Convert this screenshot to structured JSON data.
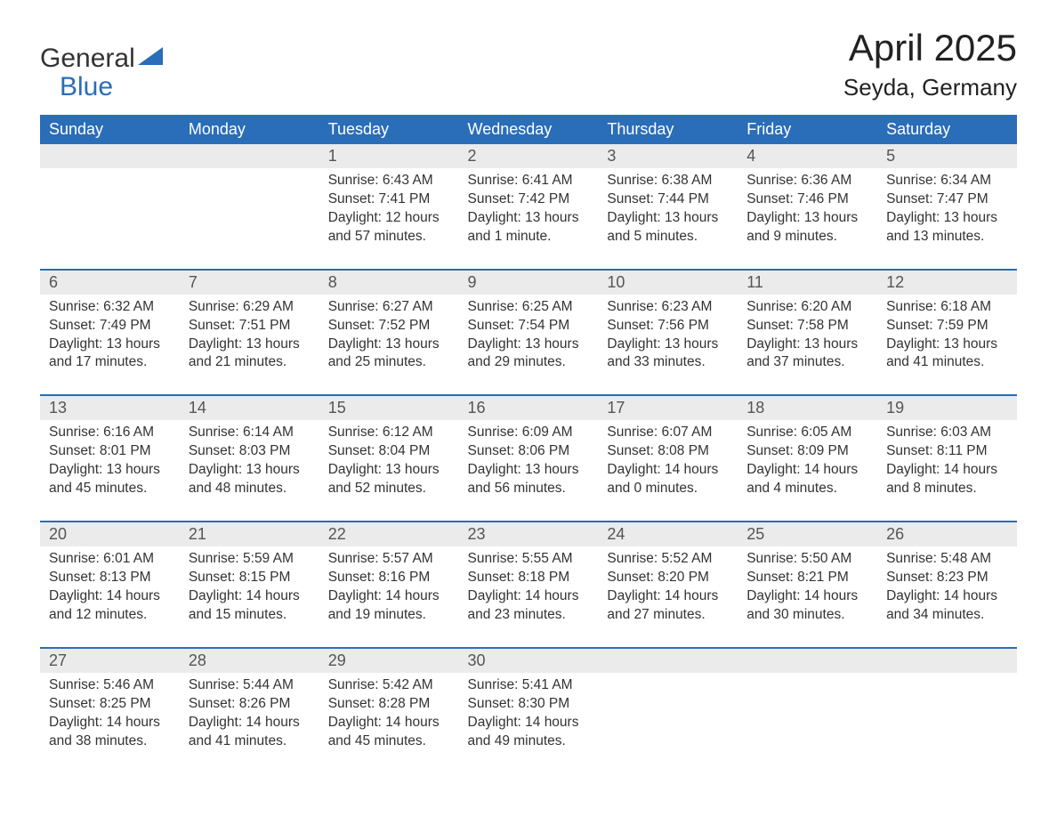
{
  "logo": {
    "line1": "General",
    "line2": "Blue",
    "triangle_color": "#2a6db8"
  },
  "title": "April 2025",
  "location": "Seyda, Germany",
  "header_bg": "#2a6db8",
  "border_color": "#2a6db8",
  "daynum_bg": "#ebebeb",
  "text_color": "#333333",
  "days_of_week": [
    "Sunday",
    "Monday",
    "Tuesday",
    "Wednesday",
    "Thursday",
    "Friday",
    "Saturday"
  ],
  "weeks": [
    [
      {
        "day": "",
        "sunrise": "",
        "sunset": "",
        "daylight": ""
      },
      {
        "day": "",
        "sunrise": "",
        "sunset": "",
        "daylight": ""
      },
      {
        "day": "1",
        "sunrise": "Sunrise: 6:43 AM",
        "sunset": "Sunset: 7:41 PM",
        "daylight": "Daylight: 12 hours and 57 minutes."
      },
      {
        "day": "2",
        "sunrise": "Sunrise: 6:41 AM",
        "sunset": "Sunset: 7:42 PM",
        "daylight": "Daylight: 13 hours and 1 minute."
      },
      {
        "day": "3",
        "sunrise": "Sunrise: 6:38 AM",
        "sunset": "Sunset: 7:44 PM",
        "daylight": "Daylight: 13 hours and 5 minutes."
      },
      {
        "day": "4",
        "sunrise": "Sunrise: 6:36 AM",
        "sunset": "Sunset: 7:46 PM",
        "daylight": "Daylight: 13 hours and 9 minutes."
      },
      {
        "day": "5",
        "sunrise": "Sunrise: 6:34 AM",
        "sunset": "Sunset: 7:47 PM",
        "daylight": "Daylight: 13 hours and 13 minutes."
      }
    ],
    [
      {
        "day": "6",
        "sunrise": "Sunrise: 6:32 AM",
        "sunset": "Sunset: 7:49 PM",
        "daylight": "Daylight: 13 hours and 17 minutes."
      },
      {
        "day": "7",
        "sunrise": "Sunrise: 6:29 AM",
        "sunset": "Sunset: 7:51 PM",
        "daylight": "Daylight: 13 hours and 21 minutes."
      },
      {
        "day": "8",
        "sunrise": "Sunrise: 6:27 AM",
        "sunset": "Sunset: 7:52 PM",
        "daylight": "Daylight: 13 hours and 25 minutes."
      },
      {
        "day": "9",
        "sunrise": "Sunrise: 6:25 AM",
        "sunset": "Sunset: 7:54 PM",
        "daylight": "Daylight: 13 hours and 29 minutes."
      },
      {
        "day": "10",
        "sunrise": "Sunrise: 6:23 AM",
        "sunset": "Sunset: 7:56 PM",
        "daylight": "Daylight: 13 hours and 33 minutes."
      },
      {
        "day": "11",
        "sunrise": "Sunrise: 6:20 AM",
        "sunset": "Sunset: 7:58 PM",
        "daylight": "Daylight: 13 hours and 37 minutes."
      },
      {
        "day": "12",
        "sunrise": "Sunrise: 6:18 AM",
        "sunset": "Sunset: 7:59 PM",
        "daylight": "Daylight: 13 hours and 41 minutes."
      }
    ],
    [
      {
        "day": "13",
        "sunrise": "Sunrise: 6:16 AM",
        "sunset": "Sunset: 8:01 PM",
        "daylight": "Daylight: 13 hours and 45 minutes."
      },
      {
        "day": "14",
        "sunrise": "Sunrise: 6:14 AM",
        "sunset": "Sunset: 8:03 PM",
        "daylight": "Daylight: 13 hours and 48 minutes."
      },
      {
        "day": "15",
        "sunrise": "Sunrise: 6:12 AM",
        "sunset": "Sunset: 8:04 PM",
        "daylight": "Daylight: 13 hours and 52 minutes."
      },
      {
        "day": "16",
        "sunrise": "Sunrise: 6:09 AM",
        "sunset": "Sunset: 8:06 PM",
        "daylight": "Daylight: 13 hours and 56 minutes."
      },
      {
        "day": "17",
        "sunrise": "Sunrise: 6:07 AM",
        "sunset": "Sunset: 8:08 PM",
        "daylight": "Daylight: 14 hours and 0 minutes."
      },
      {
        "day": "18",
        "sunrise": "Sunrise: 6:05 AM",
        "sunset": "Sunset: 8:09 PM",
        "daylight": "Daylight: 14 hours and 4 minutes."
      },
      {
        "day": "19",
        "sunrise": "Sunrise: 6:03 AM",
        "sunset": "Sunset: 8:11 PM",
        "daylight": "Daylight: 14 hours and 8 minutes."
      }
    ],
    [
      {
        "day": "20",
        "sunrise": "Sunrise: 6:01 AM",
        "sunset": "Sunset: 8:13 PM",
        "daylight": "Daylight: 14 hours and 12 minutes."
      },
      {
        "day": "21",
        "sunrise": "Sunrise: 5:59 AM",
        "sunset": "Sunset: 8:15 PM",
        "daylight": "Daylight: 14 hours and 15 minutes."
      },
      {
        "day": "22",
        "sunrise": "Sunrise: 5:57 AM",
        "sunset": "Sunset: 8:16 PM",
        "daylight": "Daylight: 14 hours and 19 minutes."
      },
      {
        "day": "23",
        "sunrise": "Sunrise: 5:55 AM",
        "sunset": "Sunset: 8:18 PM",
        "daylight": "Daylight: 14 hours and 23 minutes."
      },
      {
        "day": "24",
        "sunrise": "Sunrise: 5:52 AM",
        "sunset": "Sunset: 8:20 PM",
        "daylight": "Daylight: 14 hours and 27 minutes."
      },
      {
        "day": "25",
        "sunrise": "Sunrise: 5:50 AM",
        "sunset": "Sunset: 8:21 PM",
        "daylight": "Daylight: 14 hours and 30 minutes."
      },
      {
        "day": "26",
        "sunrise": "Sunrise: 5:48 AM",
        "sunset": "Sunset: 8:23 PM",
        "daylight": "Daylight: 14 hours and 34 minutes."
      }
    ],
    [
      {
        "day": "27",
        "sunrise": "Sunrise: 5:46 AM",
        "sunset": "Sunset: 8:25 PM",
        "daylight": "Daylight: 14 hours and 38 minutes."
      },
      {
        "day": "28",
        "sunrise": "Sunrise: 5:44 AM",
        "sunset": "Sunset: 8:26 PM",
        "daylight": "Daylight: 14 hours and 41 minutes."
      },
      {
        "day": "29",
        "sunrise": "Sunrise: 5:42 AM",
        "sunset": "Sunset: 8:28 PM",
        "daylight": "Daylight: 14 hours and 45 minutes."
      },
      {
        "day": "30",
        "sunrise": "Sunrise: 5:41 AM",
        "sunset": "Sunset: 8:30 PM",
        "daylight": "Daylight: 14 hours and 49 minutes."
      },
      {
        "day": "",
        "sunrise": "",
        "sunset": "",
        "daylight": ""
      },
      {
        "day": "",
        "sunrise": "",
        "sunset": "",
        "daylight": ""
      },
      {
        "day": "",
        "sunrise": "",
        "sunset": "",
        "daylight": ""
      }
    ]
  ]
}
